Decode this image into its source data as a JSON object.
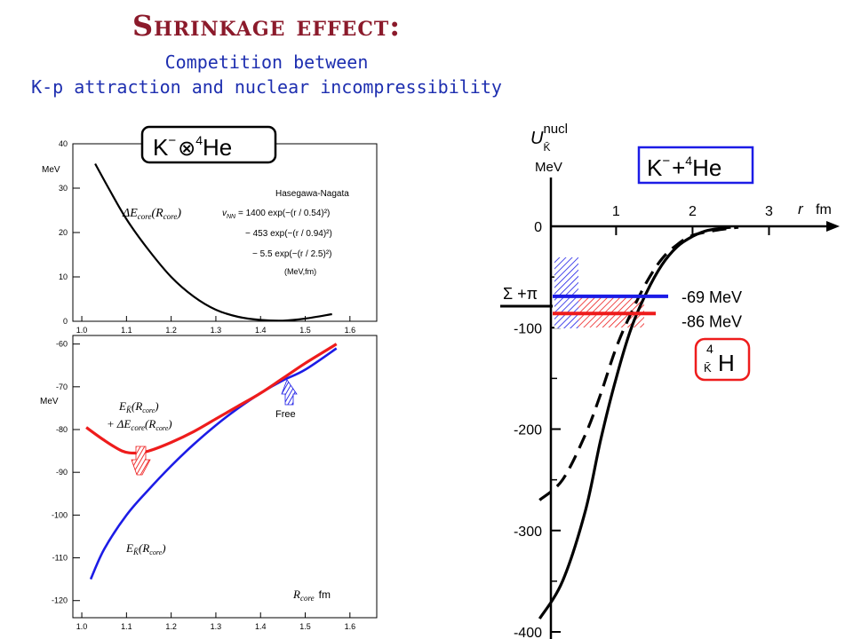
{
  "header": {
    "title": "Shrinkage effect:",
    "subtitle_line1": "Competition between",
    "subtitle_line2": "K-p attraction and nuclear incompressibility"
  },
  "colors": {
    "title": "#8b1a2b",
    "subtitle": "#1e2fb0",
    "red": "#ee1c1c",
    "blue": "#1c1ce6",
    "black": "#000000"
  },
  "chart_data": [
    {
      "type": "line",
      "title": "",
      "xlabel": "",
      "ylabel": "MeV",
      "xlim": [
        0.98,
        1.66
      ],
      "ylim": [
        0,
        40
      ],
      "x_ticks": [
        "1.0",
        "1.1",
        "1.2",
        "1.3",
        "1.4",
        "1.5",
        "1.6"
      ],
      "y_ticks": [
        "0",
        "10",
        "20",
        "30",
        "40"
      ],
      "box_label": {
        "base": "K",
        "sup1": "−",
        "op": "⊗",
        "sup2": "4",
        "nucleus": "He"
      },
      "curve_label": {
        "prefix": "ΔE",
        "sub": "core",
        "arg": "R",
        "argsub": "core"
      },
      "annotation": {
        "author": "Hasegawa-Nagata",
        "lhs": "v",
        "lhs_sub": "NN",
        "terms": [
          "= 1400 exp(−(r / 0.54)²)",
          "− 453 exp(−(r / 0.94)²)",
          "− 5.5 exp(−(r / 2.5)²)"
        ],
        "units": "(MeV,fm)"
      },
      "series": [
        {
          "color": "black",
          "points": [
            [
              1.03,
              35.5
            ],
            [
              1.06,
              30
            ],
            [
              1.1,
              23
            ],
            [
              1.15,
              16
            ],
            [
              1.2,
              10
            ],
            [
              1.25,
              5.6
            ],
            [
              1.3,
              2.6
            ],
            [
              1.35,
              1.0
            ],
            [
              1.4,
              0.3
            ],
            [
              1.45,
              0.15
            ],
            [
              1.5,
              0.6
            ],
            [
              1.56,
              1.6
            ]
          ]
        }
      ]
    },
    {
      "type": "line",
      "title": "",
      "xlabel": "R",
      "xlabel_sub": "core",
      "xunit": "fm",
      "ylabel": "MeV",
      "xlim": [
        0.98,
        1.66
      ],
      "ylim": [
        -124,
        -58
      ],
      "x_ticks": [
        "1.0",
        "1.1",
        "1.2",
        "1.3",
        "1.4",
        "1.5",
        "1.6"
      ],
      "y_ticks": [
        "-60",
        "-70",
        "-80",
        "-90",
        "-100",
        "-110",
        "-120"
      ],
      "labels": {
        "red_line1": {
          "prefix": "E",
          "sub": "K̄",
          "arg": "R",
          "argsub": "core"
        },
        "red_line2": {
          "prefix": "+ ΔE",
          "sub": "core",
          "arg": "R",
          "argsub": "core"
        },
        "blue": {
          "prefix": "E",
          "sub": "K̄",
          "arg": "R",
          "argsub": "core"
        },
        "free": "Free"
      },
      "series": [
        {
          "color": "red",
          "points": [
            [
              1.01,
              -79.5
            ],
            [
              1.05,
              -82.5
            ],
            [
              1.09,
              -85
            ],
            [
              1.12,
              -85.5
            ],
            [
              1.15,
              -85
            ],
            [
              1.2,
              -83
            ],
            [
              1.25,
              -80.5
            ],
            [
              1.3,
              -77.5
            ],
            [
              1.35,
              -74.5
            ],
            [
              1.4,
              -71.5
            ],
            [
              1.45,
              -68
            ],
            [
              1.5,
              -64.5
            ],
            [
              1.57,
              -60
            ]
          ]
        },
        {
          "color": "blue",
          "points": [
            [
              1.02,
              -115
            ],
            [
              1.05,
              -108
            ],
            [
              1.1,
              -100
            ],
            [
              1.15,
              -94
            ],
            [
              1.2,
              -88.5
            ],
            [
              1.25,
              -83.5
            ],
            [
              1.3,
              -79
            ],
            [
              1.35,
              -75
            ],
            [
              1.4,
              -71.5
            ],
            [
              1.45,
              -68.5
            ],
            [
              1.5,
              -66
            ],
            [
              1.57,
              -61
            ]
          ]
        }
      ]
    },
    {
      "type": "line",
      "title": "",
      "ylabel": "U",
      "ylabel_sub": "K̄",
      "ylabel_sup": "nucl",
      "yunit": "MeV",
      "xlabel": "r",
      "xunit": "fm",
      "xlim": [
        -0.55,
        3.75
      ],
      "ylim": [
        -400,
        0
      ],
      "x_ticks": [
        "1",
        "2",
        "3"
      ],
      "y_ticks": [
        "0",
        "-100",
        "-200",
        "-300",
        "-400"
      ],
      "box_label": {
        "base": "K",
        "sup1": "−",
        "op": "+",
        "sup2": "4",
        "nucleus": "He"
      },
      "hyper_label": {
        "top": "4",
        "bottom": "K̄",
        "symbol": "H"
      },
      "threshold_label": "Σ +π",
      "levels": [
        {
          "label": "-69 MeV",
          "value": -69,
          "color": "blue"
        },
        {
          "label": "-86 MeV",
          "value": -86,
          "color": "red"
        }
      ],
      "series": [
        {
          "name": "",
          "style": "solid",
          "color": "black",
          "points": [
            [
              0,
              -387
            ],
            [
              0.3,
              -350
            ],
            [
              0.6,
              -280
            ],
            [
              0.8,
              -210
            ],
            [
              1,
              -150
            ],
            [
              1.2,
              -100
            ],
            [
              1.4,
              -65
            ],
            [
              1.6,
              -38
            ],
            [
              1.8,
              -20
            ],
            [
              2,
              -10
            ],
            [
              2.2,
              -4
            ],
            [
              2.5,
              -1
            ]
          ]
        },
        {
          "name": "",
          "style": "dashed",
          "color": "black",
          "points": [
            [
              0,
              -270
            ],
            [
              0.3,
              -250
            ],
            [
              0.6,
              -205
            ],
            [
              0.8,
              -165
            ],
            [
              1,
              -120
            ],
            [
              1.2,
              -85
            ],
            [
              1.4,
              -55
            ],
            [
              1.6,
              -32
            ],
            [
              1.8,
              -18
            ],
            [
              2,
              -9
            ],
            [
              2.3,
              -4
            ],
            [
              2.6,
              -1
            ]
          ]
        }
      ]
    }
  ]
}
